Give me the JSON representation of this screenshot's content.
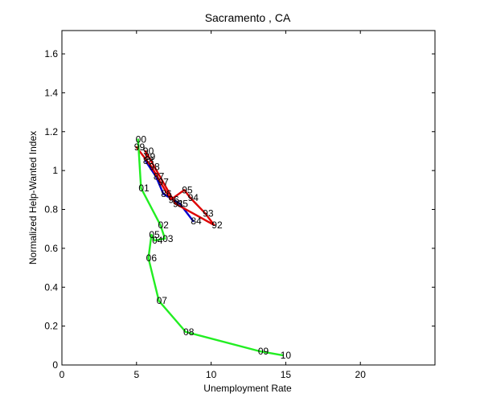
{
  "chart_data": {
    "type": "line",
    "title": "Sacramento , CA",
    "xlabel": "Unemployment Rate",
    "ylabel": "Normalized Help-Wanted Index",
    "xlim": [
      0,
      25
    ],
    "ylim": [
      0,
      1.72
    ],
    "x_ticks": [
      0,
      5,
      10,
      15,
      20
    ],
    "y_ticks": [
      0,
      0.2,
      0.4,
      0.6,
      0.8,
      1,
      1.2,
      1.4,
      1.6
    ],
    "y_tick_labels": [
      "0",
      "0.2",
      "0.4",
      "0.6",
      "0.8",
      "1",
      "1.2",
      "1.4",
      "1.6"
    ],
    "grid": false,
    "series": [
      {
        "color": "#0000cc",
        "points": [
          {
            "label": "84",
            "x": 8.8,
            "y": 0.74
          },
          {
            "label": "85",
            "x": 7.9,
            "y": 0.83
          },
          {
            "label": "86",
            "x": 6.8,
            "y": 0.88
          },
          {
            "label": "87",
            "x": 6.3,
            "y": 0.97
          },
          {
            "label": "88",
            "x": 5.6,
            "y": 1.05
          }
        ]
      },
      {
        "color": "#dd0000",
        "points": [
          {
            "label": "89",
            "x": 5.7,
            "y": 1.07
          },
          {
            "label": "90",
            "x": 5.6,
            "y": 1.1
          },
          {
            "label": "91",
            "x": 7.6,
            "y": 0.83
          },
          {
            "label": "92",
            "x": 10.2,
            "y": 0.72
          },
          {
            "label": "93",
            "x": 9.6,
            "y": 0.78
          },
          {
            "label": "94",
            "x": 8.6,
            "y": 0.86
          },
          {
            "label": "95",
            "x": 8.2,
            "y": 0.9
          },
          {
            "label": "96",
            "x": 7.3,
            "y": 0.85
          },
          {
            "label": "97",
            "x": 6.6,
            "y": 0.94
          },
          {
            "label": "98",
            "x": 6.0,
            "y": 1.02
          },
          {
            "label": "99",
            "x": 5.0,
            "y": 1.12
          }
        ]
      },
      {
        "color": "#22ee22",
        "points": [
          {
            "label": "00",
            "x": 5.1,
            "y": 1.16
          },
          {
            "label": "01",
            "x": 5.3,
            "y": 0.91
          },
          {
            "label": "02",
            "x": 6.6,
            "y": 0.72
          },
          {
            "label": "03",
            "x": 6.9,
            "y": 0.65
          },
          {
            "label": "04",
            "x": 6.2,
            "y": 0.64
          },
          {
            "label": "05",
            "x": 6.0,
            "y": 0.67
          },
          {
            "label": "06",
            "x": 5.8,
            "y": 0.55
          },
          {
            "label": "07",
            "x": 6.5,
            "y": 0.33
          },
          {
            "label": "08",
            "x": 8.3,
            "y": 0.17
          },
          {
            "label": "09",
            "x": 13.3,
            "y": 0.07
          },
          {
            "label": "10",
            "x": 14.8,
            "y": 0.05
          }
        ]
      }
    ]
  }
}
